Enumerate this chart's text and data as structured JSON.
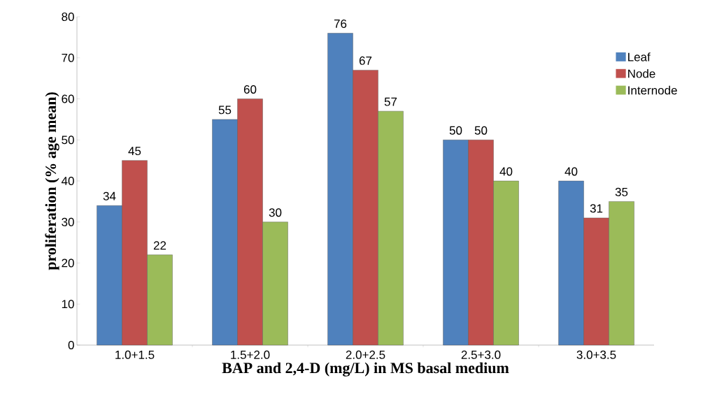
{
  "chart_data": {
    "type": "bar",
    "xlabel": "BAP and 2,4-D (mg/L) in MS basal medium",
    "ylabel": "proliferation (% age mean)",
    "categories": [
      "1.0+1.5",
      "1.5+2.0",
      "2.0+2.5",
      "2.5+3.0",
      "3.0+3.5"
    ],
    "series": [
      {
        "name": "Leaf",
        "color": "#4f81bd",
        "values": [
          34,
          55,
          76,
          50,
          40
        ]
      },
      {
        "name": "Node",
        "color": "#c0504d",
        "values": [
          45,
          60,
          67,
          50,
          31
        ]
      },
      {
        "name": "Internode",
        "color": "#9bbb59",
        "values": [
          22,
          30,
          57,
          40,
          35
        ]
      }
    ],
    "ylim": [
      0,
      80
    ],
    "yticks": [
      0,
      10,
      20,
      30,
      40,
      50,
      60,
      70,
      80
    ],
    "grid": false,
    "legend": "right",
    "data_labels": true
  }
}
